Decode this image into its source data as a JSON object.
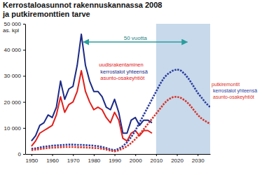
{
  "chart_data": {
    "type": "line",
    "title": "Kerrostaloasunnot rakennuskannassa 2008",
    "subtitle": "ja putkiremonttien tarve",
    "ylabel": "as. kpl",
    "x": [
      1950,
      1952,
      1954,
      1956,
      1958,
      1960,
      1962,
      1964,
      1966,
      1968,
      1970,
      1972,
      1974,
      1976,
      1978,
      1980,
      1982,
      1984,
      1986,
      1988,
      1990,
      1992,
      1994,
      1996,
      1998,
      2000,
      2002,
      2004,
      2006,
      2008,
      2010,
      2012,
      2014,
      2016,
      2018,
      2020,
      2022,
      2024,
      2026,
      2028,
      2030,
      2032,
      2034,
      2036
    ],
    "xlim": [
      1947,
      2036
    ],
    "xticks": [
      1950,
      1960,
      1970,
      1980,
      1990,
      2000,
      2010,
      2020,
      2030
    ],
    "ylim": [
      0,
      50000
    ],
    "yticks": [
      0,
      {
        "value": 10000,
        "label": "10 000"
      },
      {
        "value": 20000,
        "label": "20 000"
      },
      {
        "value": 30000,
        "label": "30 000"
      },
      {
        "value": 40000,
        "label": "40 000"
      },
      {
        "value": 50000,
        "label": "50 000"
      }
    ],
    "grid": false,
    "forecast_region": [
      2010,
      2036
    ],
    "annotations": [
      {
        "text": "50 vuotta",
        "x": [
          1975,
          2025
        ],
        "y": 43000
      }
    ],
    "series": [
      {
        "name": "kerrostalot yhteensä",
        "group": "uudisrakentaminen",
        "color": "#1b2a85",
        "line_style": "solid",
        "values": [
          5000,
          7000,
          11000,
          12000,
          15000,
          14000,
          18000,
          28000,
          21000,
          25000,
          26000,
          34000,
          46000,
          34000,
          28000,
          24000,
          24000,
          22000,
          18000,
          17000,
          21000,
          16000,
          8000,
          8000,
          13000,
          14000,
          11000,
          13000,
          13000,
          12000,
          null,
          null,
          null,
          null,
          null,
          null,
          null,
          null,
          null,
          null,
          null,
          null,
          null,
          null
        ]
      },
      {
        "name": "asunto-osakeyhtiöt",
        "group": "uudisrakentaminen",
        "color": "#e0201c",
        "line_style": "solid",
        "values": [
          3000,
          5000,
          8000,
          9000,
          10000,
          11000,
          15000,
          22000,
          16000,
          19000,
          20000,
          24000,
          32000,
          24000,
          20000,
          17000,
          18000,
          17000,
          14000,
          12000,
          16000,
          13000,
          6000,
          5000,
          8000,
          9000,
          7000,
          9000,
          9000,
          8000,
          null,
          null,
          null,
          null,
          null,
          null,
          null,
          null,
          null,
          null,
          null,
          null,
          null,
          null
        ]
      },
      {
        "name": "kerrostalot yhteensä",
        "group": "putkiremontit",
        "color": "#2a3c9e",
        "line_style": "dotted",
        "values": [
          2000,
          2200,
          2500,
          2800,
          3000,
          3200,
          3300,
          3400,
          3500,
          3600,
          3600,
          3500,
          3500,
          3400,
          3300,
          3200,
          3000,
          2700,
          2300,
          1800,
          1500,
          2000,
          3000,
          4500,
          6500,
          9000,
          12000,
          15000,
          18000,
          21000,
          24000,
          27000,
          29500,
          31000,
          32000,
          32500,
          32000,
          30500,
          28500,
          26000,
          23500,
          21500,
          19500,
          18000
        ]
      },
      {
        "name": "asunto-osakeyhtiöt",
        "group": "putkiremontit",
        "color": "#d8322a",
        "line_style": "dotted",
        "values": [
          1500,
          1700,
          1900,
          2100,
          2300,
          2400,
          2500,
          2600,
          2700,
          2700,
          2700,
          2600,
          2600,
          2500,
          2400,
          2300,
          2200,
          2000,
          1700,
          1300,
          1000,
          1400,
          2100,
          3000,
          4200,
          5700,
          7500,
          9500,
          11500,
          13500,
          15500,
          17500,
          19500,
          21000,
          21800,
          22000,
          21500,
          20500,
          19000,
          17000,
          15000,
          13500,
          12500,
          11500
        ]
      }
    ]
  }
}
